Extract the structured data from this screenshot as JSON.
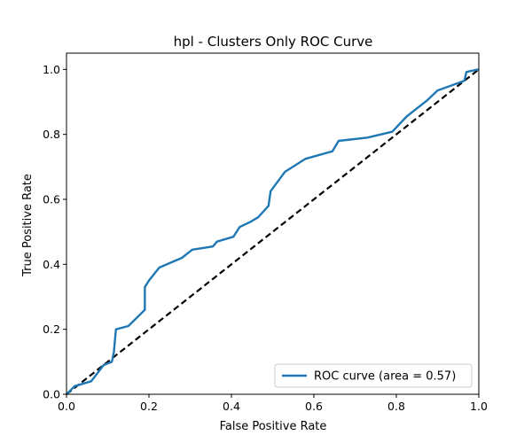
{
  "chart_data": {
    "type": "line",
    "title": "hpl - Clusters Only ROC Curve",
    "xlabel": "False Positive Rate",
    "ylabel": "True Positive Rate",
    "xlim": [
      0.0,
      1.0
    ],
    "ylim": [
      0.0,
      1.05
    ],
    "xticks": [
      0.0,
      0.2,
      0.4,
      0.6,
      0.8,
      1.0
    ],
    "yticks": [
      0.0,
      0.2,
      0.4,
      0.6,
      0.8,
      1.0
    ],
    "xtick_labels": [
      "0.0",
      "0.2",
      "0.4",
      "0.6",
      "0.8",
      "1.0"
    ],
    "ytick_labels": [
      "0.0",
      "0.2",
      "0.4",
      "0.6",
      "0.8",
      "1.0"
    ],
    "grid": false,
    "legend_position": "lower-right",
    "series": [
      {
        "name": "ROC curve (area = 0.57)",
        "color": "#1f77b4",
        "style": "solid",
        "x": [
          0.0,
          0.02,
          0.06,
          0.09,
          0.11,
          0.115,
          0.117,
          0.12,
          0.15,
          0.19,
          0.19,
          0.2,
          0.225,
          0.28,
          0.305,
          0.355,
          0.365,
          0.405,
          0.42,
          0.445,
          0.465,
          0.49,
          0.495,
          0.53,
          0.58,
          0.645,
          0.66,
          0.73,
          0.79,
          0.825,
          0.85,
          0.875,
          0.9,
          0.965,
          0.97,
          0.98,
          1.0
        ],
        "y": [
          0.0,
          0.025,
          0.04,
          0.09,
          0.1,
          0.13,
          0.16,
          0.2,
          0.21,
          0.26,
          0.33,
          0.35,
          0.39,
          0.42,
          0.445,
          0.455,
          0.47,
          0.485,
          0.515,
          0.53,
          0.545,
          0.58,
          0.625,
          0.685,
          0.725,
          0.748,
          0.78,
          0.79,
          0.808,
          0.855,
          0.88,
          0.905,
          0.935,
          0.965,
          0.992,
          0.995,
          1.0
        ]
      },
      {
        "name": "",
        "color": "#000000",
        "style": "dashed",
        "x": [
          0.0,
          1.0
        ],
        "y": [
          0.0,
          1.0
        ]
      }
    ]
  }
}
